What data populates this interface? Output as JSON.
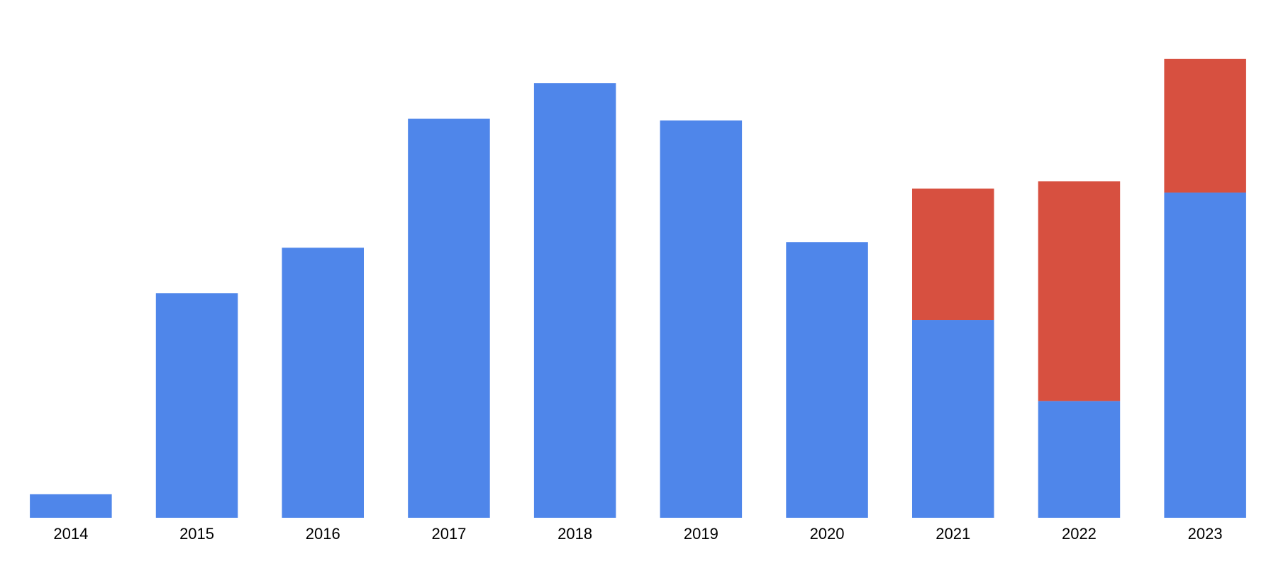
{
  "chart_data": {
    "type": "stacked_bar",
    "categories": [
      "2014",
      "2015",
      "2016",
      "2017",
      "2018",
      "2019",
      "2020",
      "2021",
      "2022",
      "2023"
    ],
    "series": [
      {
        "color": "#4f86ea",
        "values": [
          29,
          277,
          333,
          492,
          536,
          490,
          340,
          244,
          144,
          401
        ]
      },
      {
        "color": "#d75040",
        "values": [
          null,
          null,
          null,
          null,
          null,
          null,
          null,
          162,
          271,
          165
        ]
      }
    ],
    "ylim": [
      0,
      600
    ]
  }
}
